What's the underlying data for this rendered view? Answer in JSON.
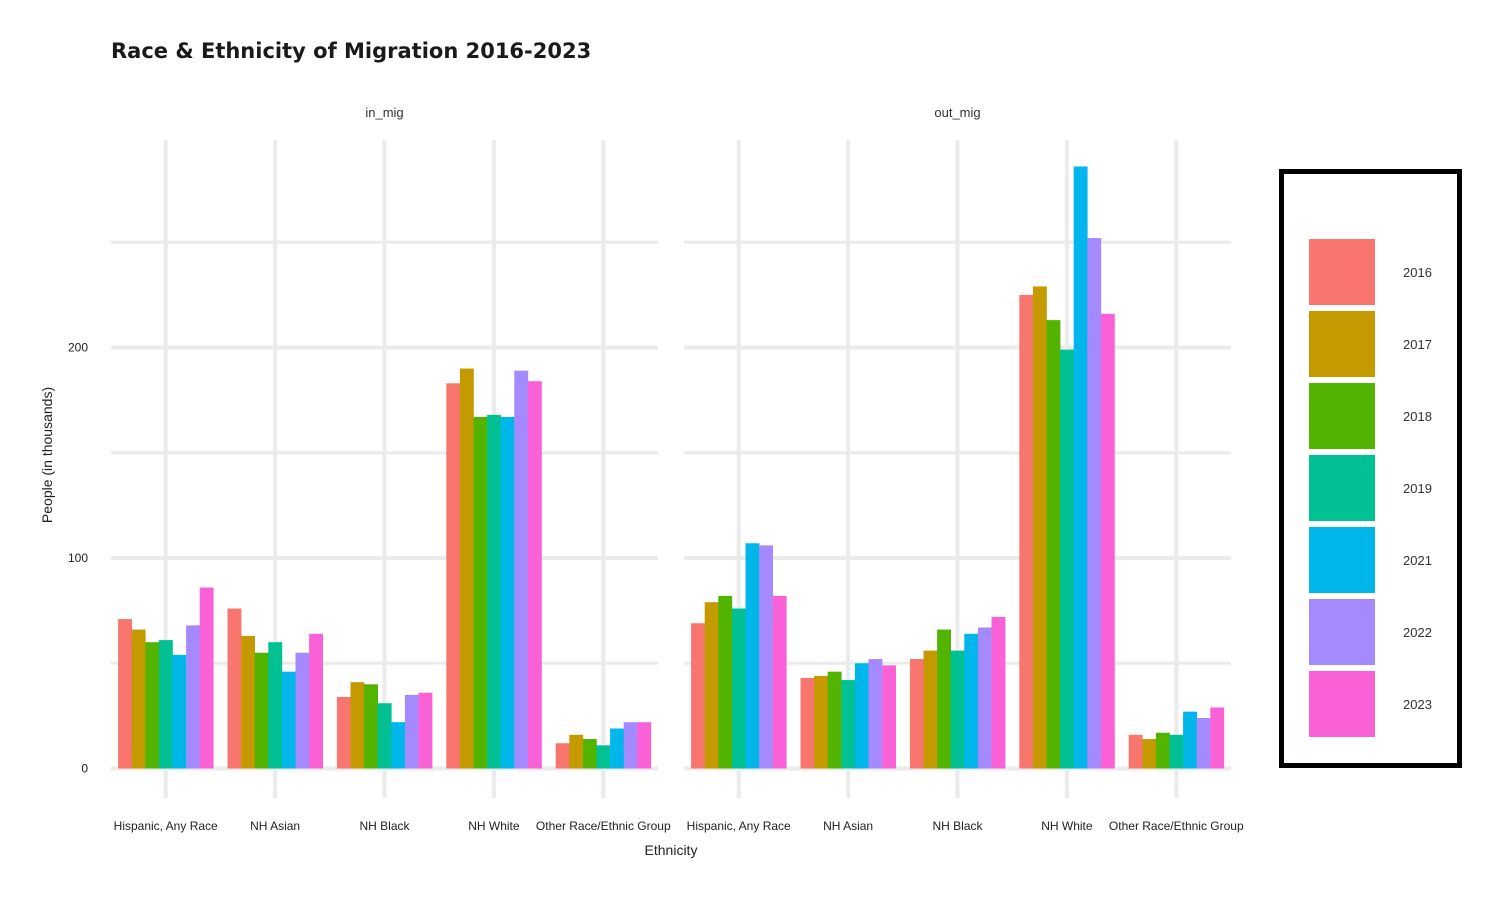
{
  "chart_data": {
    "type": "bar",
    "title": "Race & Ethnicity of Migration 2016-2023",
    "xlabel": "Ethnicity",
    "ylabel": "People (in thousands)",
    "ylim": [
      0,
      300
    ],
    "yticks": [
      0,
      100,
      200
    ],
    "grid": true,
    "legend_position": "right",
    "categories": [
      "Hispanic, Any Race",
      "NH Asian",
      "NH Black",
      "NH White",
      "Other Race/Ethnic Group"
    ],
    "legend": [
      {
        "name": "2016",
        "color": "#F8766D"
      },
      {
        "name": "2017",
        "color": "#C49A00"
      },
      {
        "name": "2018",
        "color": "#53B400"
      },
      {
        "name": "2019",
        "color": "#00C094"
      },
      {
        "name": "2021",
        "color": "#00B6EB"
      },
      {
        "name": "2022",
        "color": "#A58AFF"
      },
      {
        "name": "2023",
        "color": "#FB61D7"
      }
    ],
    "panels": [
      {
        "label": "in_mig",
        "series": [
          {
            "name": "2016",
            "values": [
              71,
              76,
              34,
              183,
              12
            ]
          },
          {
            "name": "2017",
            "values": [
              66,
              63,
              41,
              190,
              16
            ]
          },
          {
            "name": "2018",
            "values": [
              60,
              55,
              40,
              167,
              14
            ]
          },
          {
            "name": "2019",
            "values": [
              61,
              60,
              31,
              168,
              11
            ]
          },
          {
            "name": "2021",
            "values": [
              54,
              46,
              22,
              167,
              19
            ]
          },
          {
            "name": "2022",
            "values": [
              68,
              55,
              35,
              189,
              22
            ]
          },
          {
            "name": "2023",
            "values": [
              86,
              64,
              36,
              184,
              22
            ]
          }
        ]
      },
      {
        "label": "out_mig",
        "series": [
          {
            "name": "2016",
            "values": [
              69,
              43,
              52,
              225,
              16
            ]
          },
          {
            "name": "2017",
            "values": [
              79,
              44,
              56,
              229,
              14
            ]
          },
          {
            "name": "2018",
            "values": [
              82,
              46,
              66,
              213,
              17
            ]
          },
          {
            "name": "2019",
            "values": [
              76,
              42,
              56,
              199,
              16
            ]
          },
          {
            "name": "2021",
            "values": [
              107,
              50,
              64,
              286,
              27
            ]
          },
          {
            "name": "2022",
            "values": [
              106,
              52,
              67,
              252,
              24
            ]
          },
          {
            "name": "2023",
            "values": [
              82,
              49,
              72,
              216,
              29
            ]
          }
        ]
      }
    ]
  }
}
